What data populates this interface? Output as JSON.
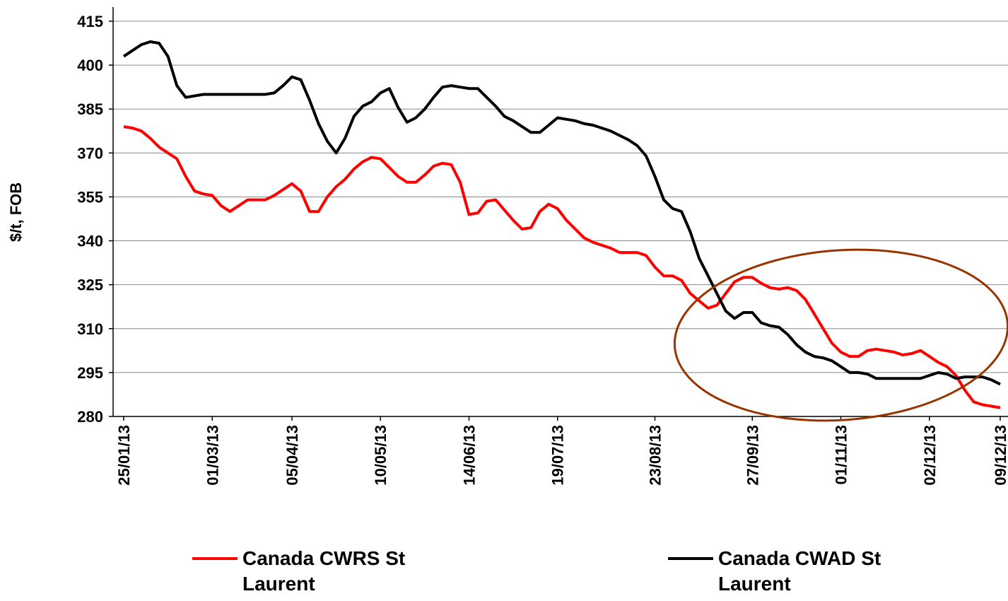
{
  "chart_data": {
    "type": "line",
    "ylabel": "$/t, FOB",
    "ylim": [
      280,
      415
    ],
    "yticks": [
      280,
      295,
      310,
      325,
      340,
      355,
      370,
      385,
      400,
      415
    ],
    "grid": true,
    "categories": [
      "25/01/13",
      null,
      null,
      null,
      null,
      null,
      null,
      null,
      null,
      null,
      "01/03/13",
      null,
      null,
      null,
      null,
      null,
      null,
      null,
      null,
      "05/04/13",
      null,
      null,
      null,
      null,
      null,
      null,
      null,
      null,
      null,
      "10/05/13",
      null,
      null,
      null,
      null,
      null,
      null,
      null,
      null,
      null,
      "14/06/13",
      null,
      null,
      null,
      null,
      null,
      null,
      null,
      null,
      null,
      "19/07/13",
      null,
      null,
      null,
      null,
      null,
      null,
      null,
      null,
      null,
      null,
      "23/08/13",
      null,
      null,
      null,
      null,
      null,
      null,
      null,
      null,
      null,
      null,
      "27/09/13",
      null,
      null,
      null,
      null,
      null,
      null,
      null,
      null,
      null,
      "01/11/13",
      null,
      null,
      null,
      null,
      null,
      null,
      null,
      null,
      null,
      "02/12/13",
      null,
      null,
      null,
      null,
      null,
      null,
      null,
      "09/12/13"
    ],
    "series": [
      {
        "name": "Canada CWRS St Laurent",
        "color": "#ff0000",
        "values": [
          379,
          378.5,
          377.5,
          375,
          372,
          370,
          368,
          362,
          357,
          356,
          355.5,
          352,
          350,
          352,
          354,
          354,
          354,
          355.5,
          357.5,
          359.5,
          357,
          350,
          350,
          355,
          358.5,
          361,
          364.5,
          367,
          368.5,
          368,
          365,
          362,
          360,
          360,
          362.5,
          365.5,
          366.5,
          366,
          360,
          349,
          349.5,
          353.5,
          354,
          350.5,
          347,
          344,
          344.5,
          350,
          352.5,
          351,
          347,
          344,
          341,
          339.5,
          338.5,
          337.5,
          336,
          336,
          336,
          335,
          331,
          328,
          328,
          326.5,
          322,
          319.5,
          317,
          318,
          322,
          326,
          327.5,
          327.5,
          325.5,
          324,
          323.5,
          324,
          323,
          320,
          315,
          310,
          305,
          302,
          300.5,
          300.5,
          302.5,
          303,
          302.5,
          302,
          301,
          301.5,
          302.5,
          300.5,
          298.5,
          297,
          294,
          289,
          285,
          284,
          283.5,
          283
        ]
      },
      {
        "name": "Canada CWAD St Laurent",
        "color": "#000000",
        "values": [
          403,
          405,
          407,
          408,
          407.5,
          403,
          393,
          389,
          389.5,
          390,
          390,
          390,
          390,
          390,
          390,
          390,
          390,
          390.5,
          393,
          396,
          395,
          388,
          380,
          374,
          370,
          375,
          382.5,
          386,
          387.5,
          390.5,
          392,
          385.5,
          380.5,
          382,
          385,
          389,
          392.5,
          393,
          392.5,
          392,
          392,
          389,
          386,
          382.5,
          381,
          379,
          377,
          377,
          379.5,
          382,
          381.5,
          381,
          380,
          379.5,
          378.5,
          377.5,
          376,
          374.5,
          372.5,
          369,
          362,
          354,
          351,
          350,
          343,
          334,
          328,
          322,
          316,
          313.5,
          315.5,
          315.5,
          312,
          311,
          310.5,
          308,
          304.5,
          302,
          300.5,
          300,
          299,
          297,
          295,
          295,
          294.5,
          293,
          293,
          293,
          293,
          293,
          293,
          294,
          295,
          294.5,
          293,
          293.5,
          293.5,
          293.5,
          292.5,
          291
        ]
      }
    ]
  }
}
